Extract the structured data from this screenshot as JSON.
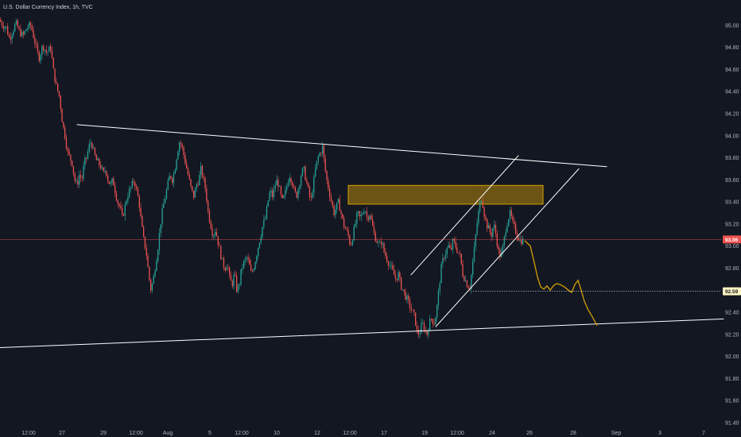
{
  "header": {
    "title": "U.S. Dollar Currency Index, 1h, TVC"
  },
  "colors": {
    "background": "#131722",
    "up": "#26a69a",
    "down": "#ef5350",
    "trendline": "#ffffff",
    "projection": "#d4a000",
    "zone_fill": "#8a6a10",
    "zone_border": "#d4a000",
    "price_line": "#ef5350",
    "price_badge_bg": "#ef5350",
    "target_badge_bg": "#fff5c2"
  },
  "chart_data": {
    "type": "candlestick",
    "title": "U.S. Dollar Currency Index, 1h, TVC",
    "ylim": [
      91.4,
      95.1
    ],
    "yticks": [
      "95.00",
      "94.80",
      "94.60",
      "94.40",
      "94.20",
      "94.00",
      "93.80",
      "93.60",
      "93.40",
      "93.20",
      "93.00",
      "92.80",
      "92.60",
      "92.40",
      "92.20",
      "92.00",
      "91.80",
      "91.60",
      "91.40"
    ],
    "xticks": [
      "12:00",
      "27",
      "29",
      "12:00",
      "Aug",
      "5",
      "12:00",
      "10",
      "12",
      "12:00",
      "17",
      "19",
      "12:00",
      "24",
      "26",
      "28",
      "Sep",
      "3",
      "7"
    ],
    "price_path": [
      [
        0,
        95.05
      ],
      [
        5,
        95.0
      ],
      [
        9,
        94.98
      ],
      [
        13,
        94.88
      ],
      [
        17,
        94.95
      ],
      [
        21,
        95.02
      ],
      [
        25,
        94.95
      ],
      [
        30,
        94.9
      ],
      [
        35,
        94.98
      ],
      [
        40,
        95.0
      ],
      [
        45,
        94.85
      ],
      [
        50,
        94.7
      ],
      [
        55,
        94.82
      ],
      [
        60,
        94.75
      ],
      [
        65,
        94.8
      ],
      [
        68,
        94.6
      ],
      [
        72,
        94.45
      ],
      [
        76,
        94.35
      ],
      [
        80,
        94.1
      ],
      [
        83,
        94.0
      ],
      [
        86,
        93.85
      ],
      [
        89,
        93.8
      ],
      [
        92,
        93.75
      ],
      [
        95,
        93.6
      ],
      [
        98,
        93.55
      ],
      [
        101,
        93.65
      ],
      [
        104,
        93.6
      ],
      [
        107,
        93.75
      ],
      [
        110,
        93.8
      ],
      [
        113,
        93.9
      ],
      [
        116,
        93.95
      ],
      [
        119,
        93.85
      ],
      [
        122,
        93.78
      ],
      [
        125,
        93.75
      ],
      [
        128,
        93.72
      ],
      [
        131,
        93.65
      ],
      [
        134,
        93.7
      ],
      [
        137,
        93.6
      ],
      [
        140,
        93.55
      ],
      [
        143,
        93.6
      ],
      [
        146,
        93.5
      ],
      [
        149,
        93.4
      ],
      [
        152,
        93.35
      ],
      [
        155,
        93.25
      ],
      [
        158,
        93.35
      ],
      [
        161,
        93.45
      ],
      [
        164,
        93.5
      ],
      [
        167,
        93.55
      ],
      [
        170,
        93.6
      ],
      [
        173,
        93.5
      ],
      [
        176,
        93.4
      ],
      [
        179,
        93.2
      ],
      [
        182,
        93.05
      ],
      [
        185,
        92.95
      ],
      [
        188,
        92.75
      ],
      [
        191,
        92.6
      ],
      [
        194,
        92.7
      ],
      [
        197,
        92.85
      ],
      [
        200,
        93.0
      ],
      [
        203,
        93.2
      ],
      [
        206,
        93.35
      ],
      [
        209,
        93.45
      ],
      [
        212,
        93.55
      ],
      [
        215,
        93.65
      ],
      [
        218,
        93.6
      ],
      [
        221,
        93.7
      ],
      [
        224,
        93.85
      ],
      [
        227,
        93.95
      ],
      [
        230,
        93.9
      ],
      [
        233,
        93.8
      ],
      [
        236,
        93.7
      ],
      [
        239,
        93.6
      ],
      [
        242,
        93.5
      ],
      [
        245,
        93.45
      ],
      [
        248,
        93.55
      ],
      [
        251,
        93.6
      ],
      [
        254,
        93.7
      ],
      [
        257,
        93.6
      ],
      [
        260,
        93.5
      ],
      [
        263,
        93.3
      ],
      [
        266,
        93.2
      ],
      [
        269,
        93.1
      ],
      [
        272,
        93.15
      ],
      [
        275,
        93.05
      ],
      [
        278,
        92.95
      ],
      [
        281,
        92.85
      ],
      [
        284,
        92.8
      ],
      [
        287,
        92.85
      ],
      [
        290,
        92.7
      ],
      [
        293,
        92.65
      ],
      [
        296,
        92.75
      ],
      [
        299,
        92.6
      ],
      [
        302,
        92.65
      ],
      [
        305,
        92.8
      ],
      [
        308,
        92.85
      ],
      [
        311,
        92.9
      ],
      [
        314,
        92.85
      ],
      [
        317,
        92.75
      ],
      [
        320,
        92.8
      ],
      [
        323,
        92.9
      ],
      [
        326,
        93.0
      ],
      [
        329,
        93.1
      ],
      [
        332,
        93.2
      ],
      [
        335,
        93.25
      ],
      [
        338,
        93.4
      ],
      [
        341,
        93.5
      ],
      [
        344,
        93.45
      ],
      [
        347,
        93.55
      ],
      [
        350,
        93.6
      ],
      [
        353,
        93.5
      ],
      [
        356,
        93.4
      ],
      [
        359,
        93.45
      ],
      [
        362,
        93.55
      ],
      [
        365,
        93.65
      ],
      [
        368,
        93.6
      ],
      [
        371,
        93.5
      ],
      [
        374,
        93.45
      ],
      [
        377,
        93.55
      ],
      [
        380,
        93.65
      ],
      [
        383,
        93.7
      ],
      [
        386,
        93.6
      ],
      [
        389,
        93.5
      ],
      [
        392,
        93.4
      ],
      [
        395,
        93.55
      ],
      [
        398,
        93.7
      ],
      [
        401,
        93.8
      ],
      [
        404,
        93.85
      ],
      [
        407,
        93.9
      ],
      [
        409,
        93.75
      ],
      [
        412,
        93.6
      ],
      [
        415,
        93.5
      ],
      [
        418,
        93.4
      ],
      [
        421,
        93.3
      ],
      [
        424,
        93.35
      ],
      [
        427,
        93.4
      ],
      [
        430,
        93.3
      ],
      [
        433,
        93.2
      ],
      [
        436,
        93.15
      ],
      [
        439,
        93.1
      ],
      [
        442,
        93.0
      ],
      [
        445,
        93.1
      ],
      [
        448,
        93.2
      ],
      [
        451,
        93.3
      ],
      [
        454,
        93.25
      ],
      [
        457,
        93.3
      ],
      [
        460,
        93.35
      ],
      [
        463,
        93.25
      ],
      [
        466,
        93.3
      ],
      [
        469,
        93.2
      ],
      [
        472,
        93.1
      ],
      [
        475,
        93.05
      ],
      [
        478,
        93.0
      ],
      [
        481,
        93.05
      ],
      [
        484,
        92.95
      ],
      [
        487,
        92.9
      ],
      [
        490,
        92.85
      ],
      [
        493,
        92.8
      ],
      [
        496,
        92.75
      ],
      [
        499,
        92.7
      ],
      [
        502,
        92.75
      ],
      [
        505,
        92.65
      ],
      [
        508,
        92.6
      ],
      [
        511,
        92.55
      ],
      [
        514,
        92.5
      ],
      [
        517,
        92.45
      ],
      [
        520,
        92.4
      ],
      [
        523,
        92.35
      ],
      [
        526,
        92.2
      ],
      [
        529,
        92.22
      ],
      [
        532,
        92.3
      ],
      [
        535,
        92.25
      ],
      [
        538,
        92.2
      ],
      [
        541,
        92.3
      ],
      [
        544,
        92.35
      ],
      [
        547,
        92.3
      ],
      [
        550,
        92.4
      ],
      [
        553,
        92.6
      ],
      [
        556,
        92.8
      ],
      [
        559,
        92.9
      ],
      [
        562,
        92.95
      ],
      [
        565,
        93.0
      ],
      [
        568,
        92.95
      ],
      [
        571,
        93.05
      ],
      [
        574,
        93.0
      ],
      [
        577,
        92.95
      ],
      [
        580,
        92.9
      ],
      [
        583,
        92.75
      ],
      [
        586,
        92.7
      ],
      [
        589,
        92.65
      ],
      [
        592,
        92.62
      ],
      [
        595,
        92.8
      ],
      [
        598,
        93.0
      ],
      [
        601,
        93.2
      ],
      [
        604,
        93.35
      ],
      [
        607,
        93.45
      ],
      [
        610,
        93.3
      ],
      [
        613,
        93.2
      ],
      [
        616,
        93.15
      ],
      [
        619,
        93.1
      ],
      [
        622,
        93.2
      ],
      [
        625,
        93.1
      ],
      [
        628,
        92.95
      ],
      [
        631,
        92.9
      ],
      [
        634,
        93.0
      ],
      [
        637,
        93.15
      ],
      [
        640,
        93.25
      ],
      [
        643,
        93.3
      ],
      [
        646,
        93.2
      ],
      [
        649,
        93.15
      ],
      [
        652,
        93.1
      ],
      [
        655,
        93.05
      ],
      [
        658,
        93.05
      ]
    ],
    "trendlines": [
      {
        "name": "upper-resistance-line",
        "points": [
          [
            97,
            94.1
          ],
          [
            763,
            93.72
          ]
        ]
      },
      {
        "name": "lower-support-line",
        "points": [
          [
            0,
            92.08
          ],
          [
            910,
            92.34
          ]
        ]
      },
      {
        "name": "channel-upper-line",
        "points": [
          [
            517,
            92.74
          ],
          [
            652,
            93.82
          ]
        ]
      },
      {
        "name": "channel-lower-line",
        "points": [
          [
            548,
            92.27
          ],
          [
            728,
            93.7
          ]
        ]
      }
    ],
    "zone": {
      "x1": 438,
      "x2": 683,
      "y1": 93.55,
      "y2": 93.38
    },
    "projection": [
      [
        660,
        93.05
      ],
      [
        667,
        93.0
      ],
      [
        672,
        92.85
      ],
      [
        676,
        92.72
      ],
      [
        680,
        92.63
      ],
      [
        684,
        92.61
      ],
      [
        688,
        92.64
      ],
      [
        692,
        92.6
      ],
      [
        696,
        92.64
      ],
      [
        700,
        92.66
      ],
      [
        705,
        92.65
      ],
      [
        710,
        92.63
      ],
      [
        715,
        92.6
      ],
      [
        719,
        92.58
      ],
      [
        723,
        92.65
      ],
      [
        727,
        92.69
      ],
      [
        731,
        92.6
      ],
      [
        735,
        92.5
      ],
      [
        740,
        92.42
      ],
      [
        745,
        92.36
      ],
      [
        751,
        92.28
      ]
    ],
    "current_price": {
      "value": 93.06,
      "label": "93.06"
    },
    "target_level": {
      "value": 92.59,
      "label": "92.59",
      "x_start": 595
    }
  }
}
